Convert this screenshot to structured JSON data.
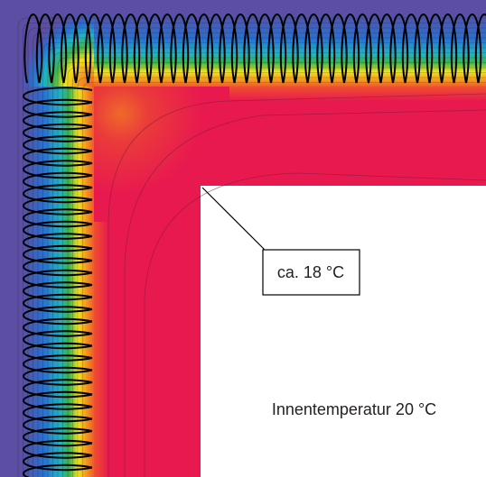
{
  "diagram": {
    "callout_label": "ca. 18 °C",
    "interior_label": "Innentemperatur 20 °C",
    "colors": {
      "outer_cold": "#5b4ea3",
      "insulation_blue": "#2a6fd0",
      "insulation_cyan": "#1fb2c8",
      "insulation_green": "#3fb54a",
      "insulation_yellow": "#f2e21c",
      "insulation_orange": "#f39422",
      "wall_red": "#e8194f",
      "interior_room": "#ffffff",
      "insulation_symbol": "#000000"
    },
    "icons": [
      "insulation-symbol",
      "isotherm-lines"
    ]
  }
}
